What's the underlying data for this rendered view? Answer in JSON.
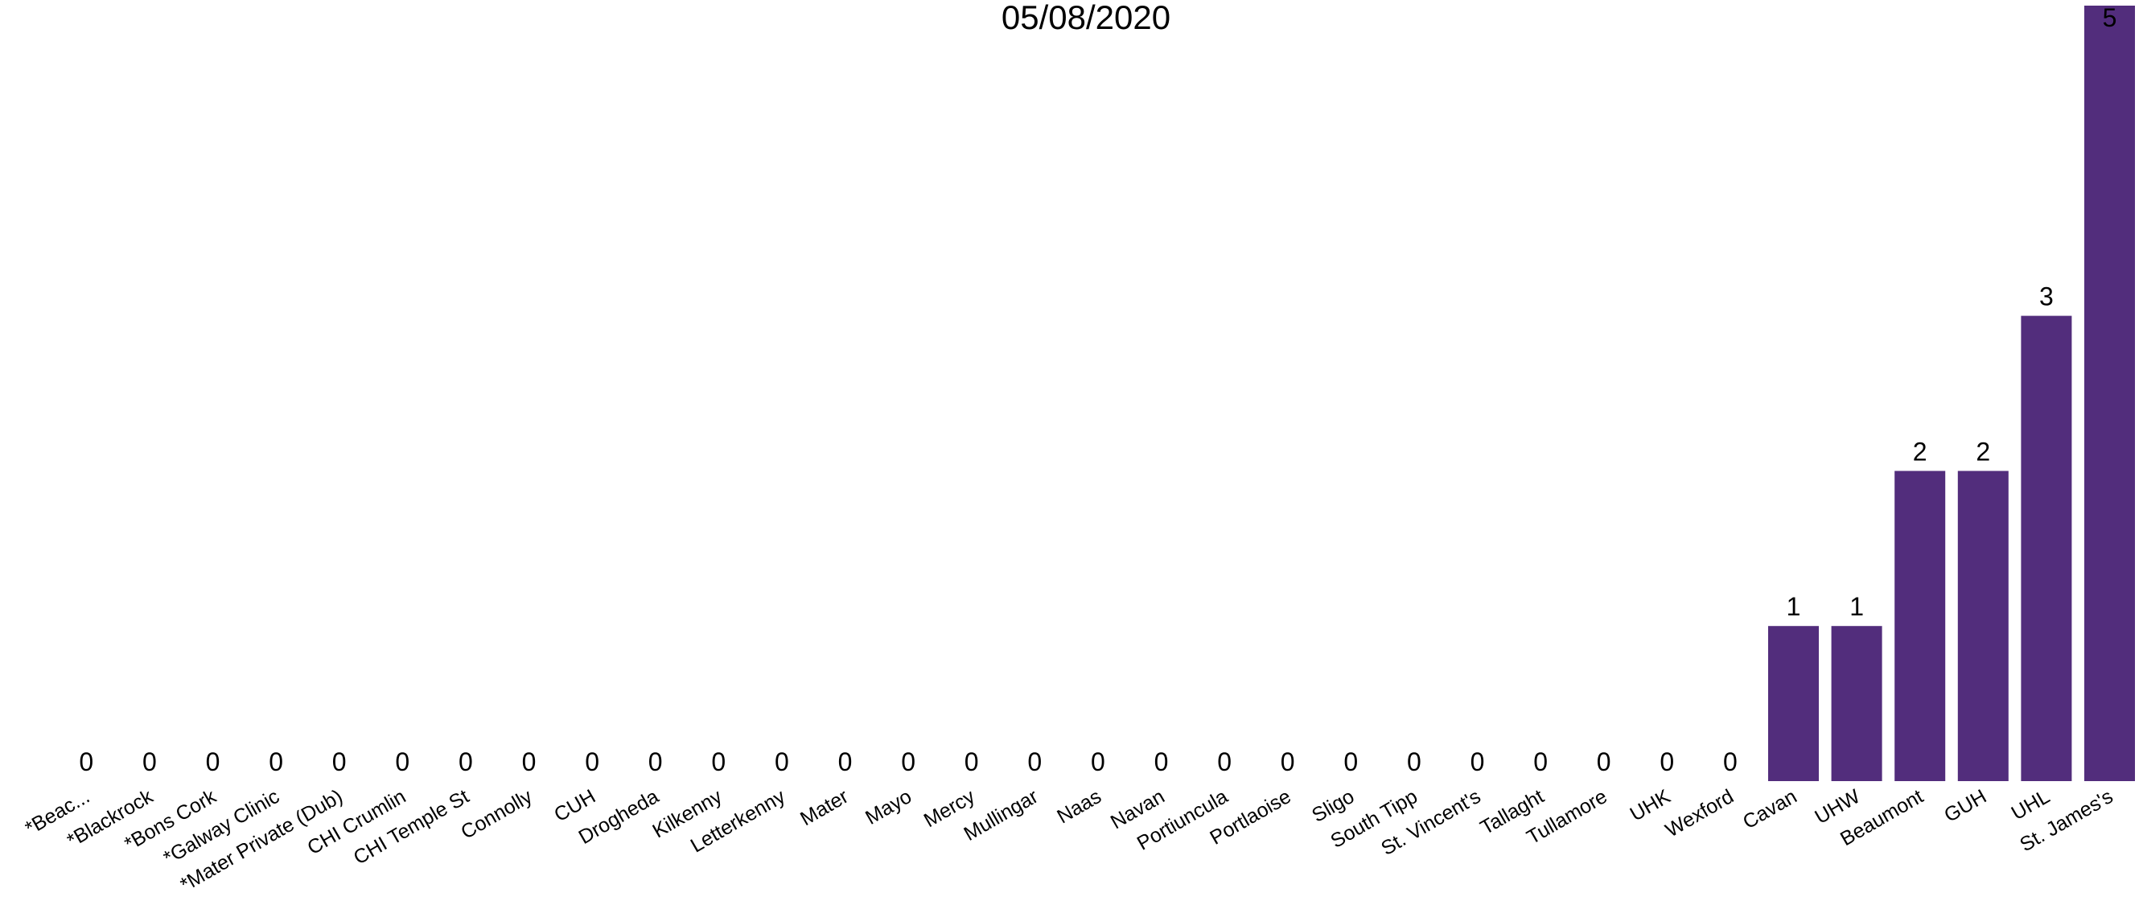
{
  "chart_data": {
    "type": "bar",
    "title": "05/08/2020",
    "xlabel": "",
    "ylabel": "",
    "ylim": [
      0,
      5
    ],
    "grid": false,
    "color": "#522D7C",
    "categories": [
      "*Beac...",
      "*Blackrock",
      "*Bons Cork",
      "*Galway Clinic",
      "*Mater Private (Dub)",
      "CHI Crumlin",
      "CHI Temple St",
      "Connolly",
      "CUH",
      "Drogheda",
      "Kilkenny",
      "Letterkenny",
      "Mater",
      "Mayo",
      "Mercy",
      "Mullingar",
      "Naas",
      "Navan",
      "Portiuncula",
      "Portlaoise",
      "Sligo",
      "South Tipp",
      "St. Vincent's",
      "Tallaght",
      "Tullamore",
      "UHK",
      "Wexford",
      "Cavan",
      "UHW",
      "Beaumont",
      "GUH",
      "UHL",
      "St. James's"
    ],
    "values": [
      0,
      0,
      0,
      0,
      0,
      0,
      0,
      0,
      0,
      0,
      0,
      0,
      0,
      0,
      0,
      0,
      0,
      0,
      0,
      0,
      0,
      0,
      0,
      0,
      0,
      0,
      0,
      1,
      1,
      2,
      2,
      3,
      5
    ]
  }
}
